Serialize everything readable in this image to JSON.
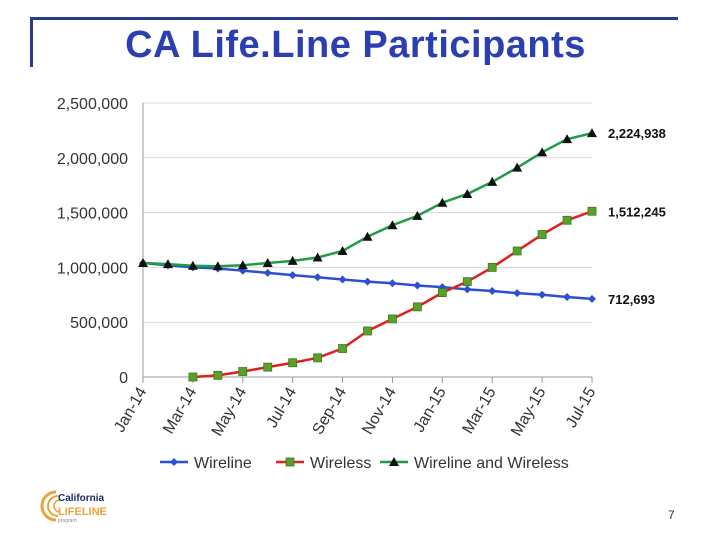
{
  "slide": {
    "title": "CA Life.Line Participants",
    "page_number": "7"
  },
  "logo": {
    "line1": "California",
    "line2": "LIFELINE",
    "line3": "program"
  },
  "chart_data": {
    "type": "line",
    "title": "",
    "xlabel": "",
    "ylabel": "",
    "ylim": [
      0,
      2500000
    ],
    "yticks": [
      0,
      500000,
      1000000,
      1500000,
      2000000,
      2500000
    ],
    "ytick_labels": [
      "0",
      "500,000",
      "1,000,000",
      "1,500,000",
      "2,000,000",
      "2,500,000"
    ],
    "x": [
      "Jan-14",
      "Feb-14",
      "Mar-14",
      "Apr-14",
      "May-14",
      "Jun-14",
      "Jul-14",
      "Aug-14",
      "Sep-14",
      "Oct-14",
      "Nov-14",
      "Dec-14",
      "Jan-15",
      "Feb-15",
      "Mar-15",
      "Apr-15",
      "May-15",
      "Jun-15",
      "Jul-15"
    ],
    "xtick_labels": [
      "Jan-14",
      "Mar-14",
      "May-14",
      "Jul-14",
      "Sep-14",
      "Nov-14",
      "Jan-15",
      "Mar-15",
      "May-15",
      "Jul-15"
    ],
    "grid": "horizontal",
    "legend": "bottom",
    "series": [
      {
        "name": "Wireline",
        "color": "#2e4fd0",
        "marker": "diamond",
        "values": [
          1040000,
          1020000,
          1000000,
          990000,
          970000,
          950000,
          930000,
          910000,
          890000,
          870000,
          855000,
          835000,
          820000,
          800000,
          785000,
          765000,
          750000,
          730000,
          712693
        ],
        "end_label": "712,693"
      },
      {
        "name": "Wireless",
        "color": "#e02020",
        "marker": "square",
        "values": [
          null,
          null,
          0,
          15000,
          50000,
          90000,
          130000,
          175000,
          260000,
          420000,
          530000,
          640000,
          770000,
          870000,
          1000000,
          1150000,
          1300000,
          1430000,
          1512245
        ],
        "end_label": "1,512,245"
      },
      {
        "name": "Wireline and Wireless",
        "color": "#1f9c45",
        "marker": "triangle",
        "values": [
          1040000,
          1030000,
          1015000,
          1010000,
          1020000,
          1040000,
          1060000,
          1090000,
          1150000,
          1280000,
          1385000,
          1470000,
          1590000,
          1670000,
          1780000,
          1910000,
          2050000,
          2170000,
          2224938
        ],
        "end_label": "2,224,938"
      }
    ]
  }
}
